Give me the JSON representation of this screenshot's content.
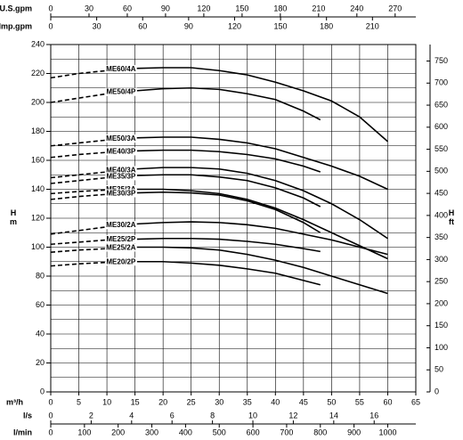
{
  "chart_data": {
    "type": "line",
    "x_label": "m³/h",
    "y_label": "H\nm",
    "y2_label": "H\nft",
    "x": [
      0,
      5,
      10,
      15,
      20,
      25,
      30,
      35,
      40,
      45,
      48,
      50,
      55,
      60
    ],
    "xlim": [
      0,
      65
    ],
    "xticks": [
      0,
      5,
      10,
      15,
      20,
      25,
      30,
      35,
      40,
      45,
      50,
      55,
      60,
      65
    ],
    "ylim": [
      0,
      240
    ],
    "yticks": [
      0,
      20,
      40,
      60,
      80,
      100,
      120,
      140,
      160,
      180,
      200,
      220,
      240
    ],
    "yminor": [
      10,
      30,
      50,
      70,
      90,
      110,
      130,
      150,
      170,
      190,
      210,
      230
    ],
    "y2lim": [
      0,
      787.4
    ],
    "y2ticks": [
      0,
      50,
      100,
      150,
      200,
      250,
      300,
      350,
      400,
      450,
      500,
      550,
      600,
      650,
      700,
      750
    ],
    "grid": true,
    "dashed_below_x": 10,
    "color": "#000000",
    "extra_axes": [
      {
        "position": "top",
        "label": "U.S.gpm",
        "lim": [
          0,
          286.2
        ],
        "ticks": [
          0,
          30,
          60,
          90,
          120,
          150,
          180,
          210,
          240,
          270
        ]
      },
      {
        "position": "top",
        "label": "Imp.gpm",
        "lim": [
          0,
          238.3
        ],
        "ticks": [
          0,
          30,
          60,
          90,
          120,
          150,
          180,
          210
        ]
      },
      {
        "position": "bottom",
        "label": "l/s",
        "lim": [
          0,
          18.06
        ],
        "ticks": [
          0,
          2,
          4,
          6,
          8,
          10,
          12,
          14,
          16
        ]
      },
      {
        "position": "bottom",
        "label": "l/min",
        "lim": [
          0,
          1083.3
        ],
        "ticks": [
          0,
          100,
          200,
          300,
          400,
          500,
          600,
          700,
          800,
          900,
          1000
        ]
      }
    ],
    "series": [
      {
        "name": "ME60/4A",
        "values": [
          217,
          220,
          222,
          223.5,
          224,
          224,
          222,
          219,
          214,
          208,
          null,
          201,
          190,
          173
        ]
      },
      {
        "name": "ME50/4P",
        "values": [
          200,
          203,
          206,
          208,
          209.5,
          210,
          209,
          206,
          202,
          194,
          188,
          null,
          null,
          null
        ]
      },
      {
        "name": "ME50/3A",
        "values": [
          170,
          172,
          174,
          175.5,
          176,
          176,
          174.5,
          172,
          168,
          162,
          null,
          156,
          149,
          140
        ]
      },
      {
        "name": "ME40/3P",
        "values": [
          162,
          164,
          165.5,
          166.5,
          167,
          167,
          166,
          164,
          161,
          156,
          152,
          null,
          null,
          null
        ]
      },
      {
        "name": "ME40/3A",
        "values": [
          148,
          150,
          152,
          154,
          155,
          155,
          154,
          151,
          146,
          139,
          null,
          130,
          119,
          106
        ]
      },
      {
        "name": "ME35/3P",
        "values": [
          144,
          146,
          148,
          149.5,
          150,
          150,
          148.5,
          146,
          141,
          134,
          128,
          null,
          null,
          null
        ]
      },
      {
        "name": "ME35/3A",
        "values": [
          137,
          138.5,
          139.5,
          140,
          140,
          139,
          137,
          133,
          127,
          119,
          null,
          110,
          101,
          92
        ]
      },
      {
        "name": "ME30/3P",
        "values": [
          133,
          135,
          136.5,
          137.5,
          138,
          137.5,
          136,
          132,
          126,
          117,
          110,
          null,
          null,
          null
        ]
      },
      {
        "name": "ME30/2A",
        "values": [
          109,
          111.5,
          114,
          116,
          117,
          117.5,
          117,
          115.5,
          113,
          109,
          null,
          105,
          100,
          95
        ]
      },
      {
        "name": "ME25/2P",
        "values": [
          102,
          103.5,
          105,
          105.5,
          106,
          106,
          105.5,
          104,
          102,
          99,
          97,
          null,
          null,
          null
        ]
      },
      {
        "name": "ME25/2A",
        "values": [
          96.5,
          98,
          99,
          100,
          100,
          99.5,
          98,
          95,
          91,
          86,
          null,
          80,
          74,
          68
        ]
      },
      {
        "name": "ME20/2P",
        "values": [
          87,
          88.5,
          89.5,
          90,
          90,
          89,
          87.5,
          85,
          82,
          77,
          74,
          null,
          null,
          null
        ]
      }
    ]
  }
}
